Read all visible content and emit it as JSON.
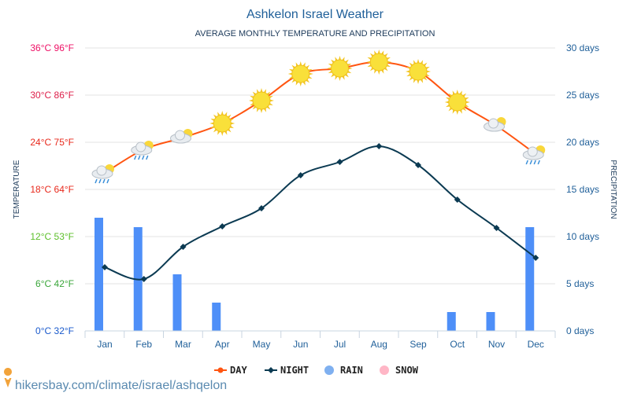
{
  "chart_data": {
    "type": "line",
    "title": "Ashkelon Israel Weather",
    "subtitle": "AVERAGE MONTHLY TEMPERATURE AND PRECIPITATION",
    "ylabel_left": "TEMPERATURE",
    "ylabel_right": "PRECIPITATION",
    "categories": [
      "Jan",
      "Feb",
      "Mar",
      "Apr",
      "May",
      "Jun",
      "Jul",
      "Aug",
      "Sep",
      "Oct",
      "Nov",
      "Dec"
    ],
    "left_ticks": [
      {
        "value": 0,
        "label": "0°C 32°F",
        "color": "#1a5acc"
      },
      {
        "value": 6,
        "label": "6°C 42°F",
        "color": "#3aa63a"
      },
      {
        "value": 12,
        "label": "12°C 53°F",
        "color": "#5cbf2a"
      },
      {
        "value": 18,
        "label": "18°C 64°F",
        "color": "#e8291c"
      },
      {
        "value": 24,
        "label": "24°C 75°F",
        "color": "#e8291c"
      },
      {
        "value": 30,
        "label": "30°C 86°F",
        "color": "#dd1f4a"
      },
      {
        "value": 36,
        "label": "36°C 96°F",
        "color": "#ee1166"
      }
    ],
    "right_ticks": [
      {
        "value": 0,
        "label": "0 days"
      },
      {
        "value": 5,
        "label": "5 days"
      },
      {
        "value": 10,
        "label": "10 days"
      },
      {
        "value": 15,
        "label": "15 days"
      },
      {
        "value": 20,
        "label": "20 days"
      },
      {
        "value": 25,
        "label": "25 days"
      },
      {
        "value": 30,
        "label": "30 days"
      }
    ],
    "ylim_left": [
      0,
      36
    ],
    "ylim_right": [
      0,
      30
    ],
    "grid": true,
    "legend_position": "bottom",
    "series": [
      {
        "name": "DAY",
        "axis": "left",
        "color": "#ff5511",
        "values": [
          20.1,
          23.1,
          24.6,
          26.4,
          29.3,
          32.7,
          33.4,
          34.2,
          33.0,
          29.1,
          26.1,
          22.5
        ],
        "icons": [
          "partly-cloudy-rain-icon",
          "partly-cloudy-rain-icon",
          "partly-cloudy-icon",
          "sun-icon",
          "sun-icon",
          "sun-icon",
          "sun-icon",
          "sun-icon",
          "sun-icon",
          "sun-icon",
          "partly-cloudy-icon",
          "partly-cloudy-rain-icon"
        ]
      },
      {
        "name": "NIGHT",
        "axis": "left",
        "color": "#0b3a52",
        "values": [
          8.1,
          6.6,
          10.7,
          13.3,
          15.6,
          19.8,
          21.5,
          23.5,
          21.1,
          16.7,
          13.1,
          9.3
        ]
      },
      {
        "name": "RAIN",
        "axis": "right",
        "type": "bar",
        "color": "#4e8ff8",
        "values": [
          12,
          11,
          6,
          3,
          0,
          0,
          0,
          0,
          0,
          2,
          2,
          11
        ]
      },
      {
        "name": "SNOW",
        "axis": "right",
        "type": "bar",
        "color": "#ffb6c6",
        "values": [
          0,
          0,
          0,
          0,
          0,
          0,
          0,
          0,
          0,
          0,
          0,
          0
        ]
      }
    ],
    "legend_rain_color": "#7fb0f0"
  },
  "footer": {
    "link": "hikersbay.com/climate/israel/ashqelon"
  }
}
